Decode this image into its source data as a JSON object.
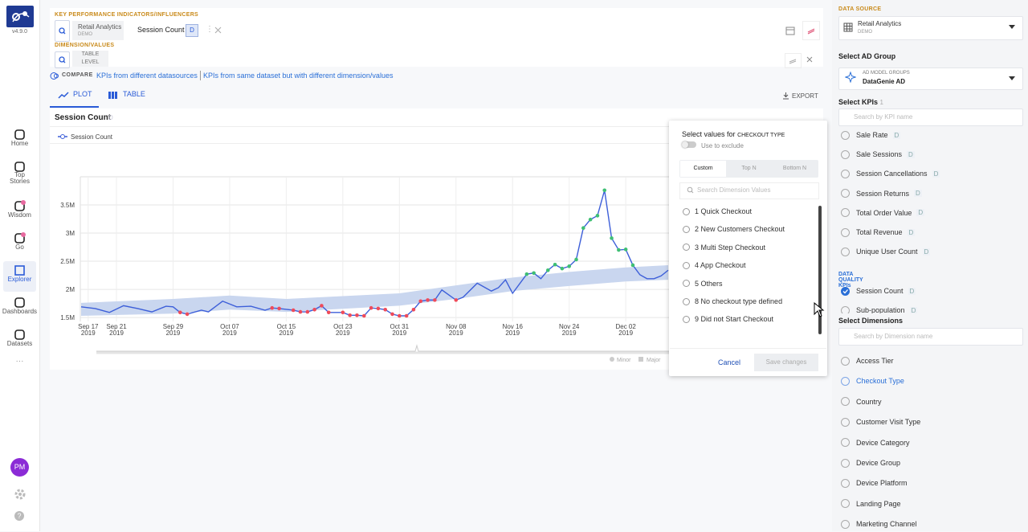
{
  "sidebar": {
    "version": "v4.9.0",
    "nav": [
      "Home",
      "Top\nStories",
      "Wisdom",
      "Go",
      "Explorer",
      "Dashboards",
      "Datasets"
    ],
    "avatar": "PM"
  },
  "kpi_bar": {
    "kpi_label": "KEY PERFORMANCE INDICATORS/INFLUENCERS",
    "source": "Retail Analytics",
    "source_tag": "DEMO",
    "kpi": "Session Count",
    "kpi_badge": "D",
    "dimension_label": "DIMENSION/VALUES",
    "level": "TABLE\nLEVEL"
  },
  "compare": {
    "label": "COMPARE",
    "links": [
      "KPIs from different datasources",
      "KPIs from same dataset but with different dimension/values"
    ]
  },
  "tabs": [
    "PLOT",
    "TABLE"
  ],
  "export": "EXPORT",
  "chart_data": {
    "type": "line",
    "title": "Session Count",
    "title_badge": "D",
    "series": [
      {
        "name": "Session Count",
        "color": "#3d5fd9",
        "values": [
          1690000,
          1660000,
          1590000,
          1710000,
          1660000,
          1600000,
          1700000,
          1690000,
          1590000,
          1560000,
          1630000,
          1600000,
          1790000,
          1690000,
          1700000,
          1630000,
          1670000,
          1660000,
          1630000,
          1600000,
          1600000,
          1640000,
          1710000,
          1590000,
          1590000,
          1540000,
          1540000,
          1530000,
          1670000,
          1660000,
          1640000,
          1560000,
          1530000,
          1530000,
          1640000,
          1790000,
          1810000,
          1810000,
          1990000,
          1810000,
          1860000,
          2110000,
          1970000,
          2030000,
          2170000,
          1930000,
          2270000,
          2290000,
          2190000,
          2340000,
          2440000,
          2370000,
          2410000,
          2530000,
          3090000,
          3240000,
          3310000,
          3760000,
          2910000,
          2700000,
          2710000,
          2430000,
          2260000,
          2190000,
          2190000,
          2240000,
          2340000
        ],
        "marker_colors": [
          null,
          null,
          null,
          null,
          null,
          null,
          null,
          null,
          "#ef4b5a",
          "#ef4b5a",
          null,
          null,
          null,
          null,
          null,
          null,
          "#ef4b5a",
          "#ef4b5a",
          "#ef4b5a",
          "#ef4b5a",
          "#ef4b5a",
          "#ef4b5a",
          "#ef4b5a",
          "#ef4b5a",
          "#ef4b5a",
          "#ef4b5a",
          "#ef4b5a",
          "#ef4b5a",
          "#ef4b5a",
          "#ef4b5a",
          "#ef4b5a",
          "#ef4b5a",
          "#ef4b5a",
          "#ef4b5a",
          "#ef4b5a",
          "#ef4b5a",
          "#ef4b5a",
          "#ef4b5a",
          null,
          "#ef4b5a",
          null,
          null,
          null,
          null,
          null,
          null,
          "#3fbf74",
          "#3fbf74",
          null,
          "#3fbf74",
          "#3fbf74",
          "#3fbf74",
          "#3fbf74",
          "#3fbf74",
          "#3fbf74",
          "#3fbf74",
          "#3fbf74",
          "#3fbf74",
          "#3fbf74",
          "#3fbf74",
          "#3fbf74",
          "#3fbf74",
          null,
          null,
          null,
          null,
          null
        ]
      }
    ],
    "x": [
      "2019-09-16",
      "2019-09-18",
      "2019-09-20",
      "2019-09-22",
      "2019-09-24",
      "2019-09-26",
      "2019-09-28",
      "2019-09-29",
      "2019-09-30",
      "2019-10-01",
      "2019-10-03",
      "2019-10-04",
      "2019-10-06",
      "2019-10-08",
      "2019-10-10",
      "2019-10-12",
      "2019-10-13",
      "2019-10-14",
      "2019-10-16",
      "2019-10-17",
      "2019-10-18",
      "2019-10-19",
      "2019-10-20",
      "2019-10-21",
      "2019-10-23",
      "2019-10-24",
      "2019-10-25",
      "2019-10-26",
      "2019-10-27",
      "2019-10-28",
      "2019-10-29",
      "2019-10-30",
      "2019-10-31",
      "2019-11-01",
      "2019-11-02",
      "2019-11-03",
      "2019-11-04",
      "2019-11-05",
      "2019-11-06",
      "2019-11-08",
      "2019-11-09",
      "2019-11-11",
      "2019-11-13",
      "2019-11-14",
      "2019-11-15",
      "2019-11-16",
      "2019-11-18",
      "2019-11-19",
      "2019-11-20",
      "2019-11-21",
      "2019-11-22",
      "2019-11-23",
      "2019-11-24",
      "2019-11-25",
      "2019-11-26",
      "2019-11-27",
      "2019-11-28",
      "2019-11-29",
      "2019-11-30",
      "2019-12-01",
      "2019-12-02",
      "2019-12-03",
      "2019-12-04",
      "2019-12-05",
      "2019-12-06",
      "2019-12-07",
      "2019-12-08"
    ],
    "band": {
      "color": "#c9d6ef",
      "x": [
        "2019-09-16",
        "2019-09-29",
        "2019-10-07",
        "2019-10-15",
        "2019-10-31",
        "2019-11-08",
        "2019-11-16",
        "2019-11-24",
        "2019-12-02",
        "2019-12-08"
      ],
      "lower": [
        1530000,
        1570000,
        1640000,
        1600000,
        1710000,
        1830000,
        1970000,
        2060000,
        2140000,
        2170000
      ],
      "upper": [
        1760000,
        1830000,
        1890000,
        1830000,
        1930000,
        2070000,
        2210000,
        2310000,
        2390000,
        2430000
      ]
    },
    "xlim": [
      "2019-09-16",
      "2019-12-08"
    ],
    "xticks": [
      {
        "value": "2019-09-17",
        "label": "Sep 17\n2019"
      },
      {
        "value": "2019-09-21",
        "label": "Sep 21\n2019"
      },
      {
        "value": "2019-09-29",
        "label": "Sep 29\n2019"
      },
      {
        "value": "2019-10-07",
        "label": "Oct 07\n2019"
      },
      {
        "value": "2019-10-15",
        "label": "Oct 15\n2019"
      },
      {
        "value": "2019-10-23",
        "label": "Oct 23\n2019"
      },
      {
        "value": "2019-10-31",
        "label": "Oct 31\n2019"
      },
      {
        "value": "2019-11-08",
        "label": "Nov 08\n2019"
      },
      {
        "value": "2019-11-16",
        "label": "Nov 16\n2019"
      },
      {
        "value": "2019-11-24",
        "label": "Nov 24\n2019"
      },
      {
        "value": "2019-12-02",
        "label": "Dec 02\n2019"
      }
    ],
    "ylim": [
      1430000,
      4000000
    ],
    "yticks": [
      {
        "value": 1500000,
        "label": "1.5M"
      },
      {
        "value": 2000000,
        "label": "2M"
      },
      {
        "value": 2500000,
        "label": "2.5M"
      },
      {
        "value": 3000000,
        "label": "3M"
      },
      {
        "value": 3500000,
        "label": "3.5M"
      }
    ],
    "grid": true,
    "range_legend": [
      "Minor",
      "Major"
    ]
  },
  "popup": {
    "title": "Select values for",
    "dimension": "CHECKOUT TYPE",
    "exclude": "Use to exclude",
    "tabs": [
      "Custom",
      "Top N",
      "Bottom N"
    ],
    "active_tab": 0,
    "search": "Search Dimension Values",
    "values": [
      "1 Quick Checkout",
      "2 New Customers Checkout",
      "3 Multi Step Checkout",
      "4 App Checkout",
      "5 Others",
      "8 No checkout type defined",
      "9 Did not Start Checkout"
    ],
    "cancel": "Cancel",
    "save": "Save changes"
  },
  "right_panel": {
    "data_source_label": "DATA SOURCE",
    "source": "Retail Analytics",
    "source_tag": "DEMO",
    "ad_group_label": "Select AD Group",
    "ad_group_tag": "AD MODEL GROUPS",
    "ad_group": "DataGenie AD",
    "kpis_label": "Select KPIs",
    "kpi_count": 1,
    "kpi_search": "Search by KPI name",
    "kpis": [
      {
        "name": "Sale Rate",
        "badge": "D"
      },
      {
        "name": "Sale Sessions",
        "badge": "D"
      },
      {
        "name": "Session Cancellations",
        "badge": "D"
      },
      {
        "name": "Session Returns",
        "badge": "D"
      },
      {
        "name": "Total Order Value",
        "badge": "D"
      },
      {
        "name": "Total Revenue",
        "badge": "D"
      },
      {
        "name": "Unique User Count",
        "badge": "D"
      }
    ],
    "data_quality_label": "DATA QUALITY KPIs",
    "data_quality_kpis": [
      {
        "name": "Session Count",
        "badge": "D",
        "checked": true
      },
      {
        "name": "Sub-population",
        "badge": "D",
        "checked": false
      }
    ],
    "dimensions_label": "Select Dimensions",
    "dimension_search": "Search by Dimension name",
    "dimensions": [
      "Access Tier",
      "Checkout Type",
      "Country",
      "Customer Visit Type",
      "Device Category",
      "Device Group",
      "Device Platform",
      "Landing Page",
      "Marketing Channel"
    ],
    "selected_dimension": 1
  }
}
